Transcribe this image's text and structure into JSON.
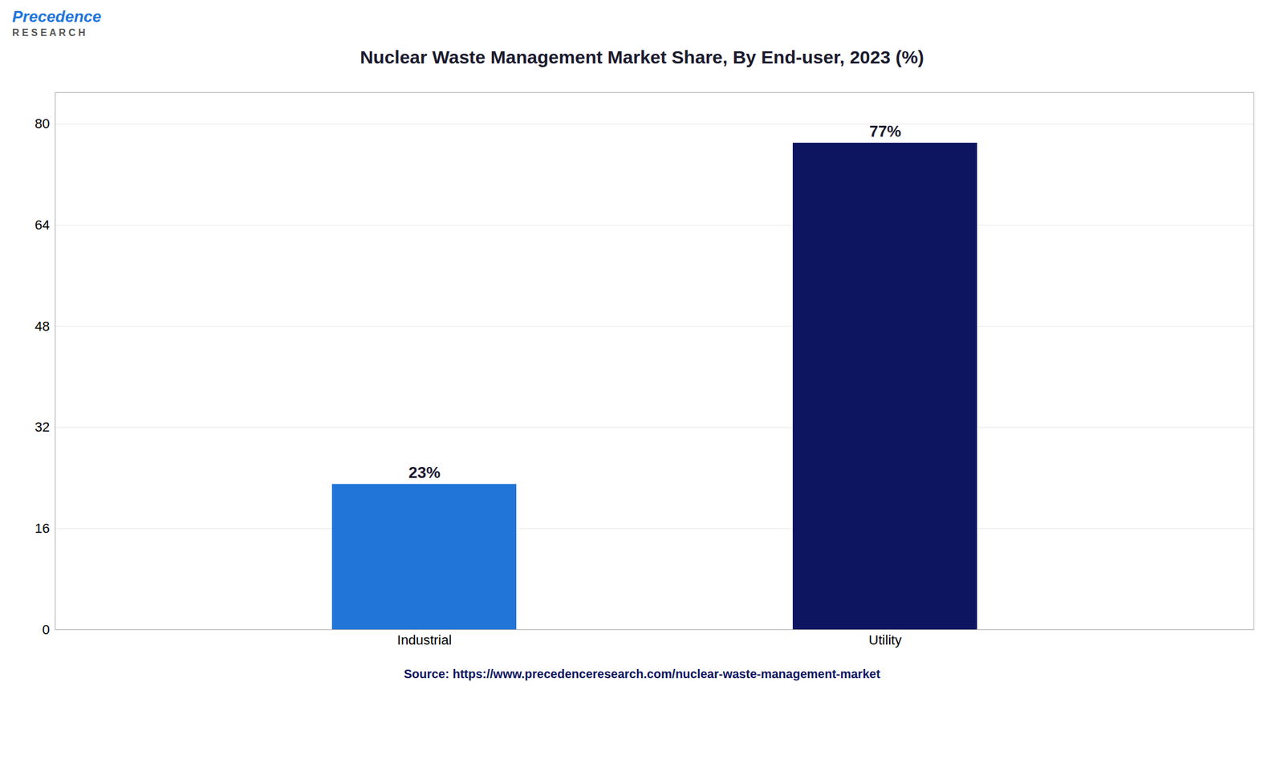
{
  "chart_data": {
    "type": "bar",
    "title": "Nuclear Waste Management Market Share, By End-user, 2023 (%)",
    "categories": [
      "Industrial",
      "Utility"
    ],
    "values": [
      23,
      77
    ],
    "value_labels": [
      "23%",
      "77%"
    ],
    "colors": [
      "#2175d9",
      "#0d1560"
    ],
    "ylim": [
      0,
      85
    ],
    "yticks": [
      0,
      16,
      32,
      48,
      64,
      80
    ],
    "grid": true,
    "data_labels": true,
    "annotations": [
      "Precedence",
      "R E S E A R C H",
      "Source: https://www.precedenceresearch.com/nuclear-waste-management-market"
    ]
  }
}
